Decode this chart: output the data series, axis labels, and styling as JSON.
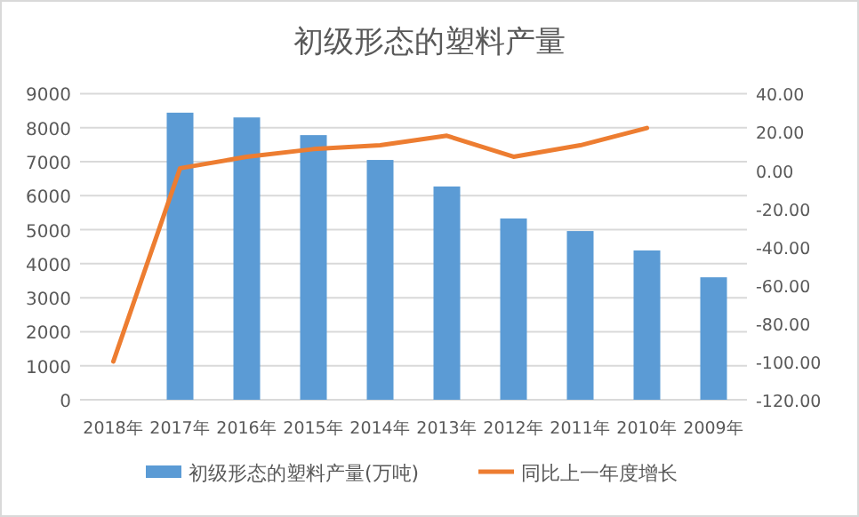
{
  "chart_data": {
    "type": "bar",
    "title": "初级形态的塑料产量",
    "categories": [
      "2018年",
      "2017年",
      "2016年",
      "2015年",
      "2014年",
      "2013年",
      "2012年",
      "2011年",
      "2010年",
      "2009年"
    ],
    "series": [
      {
        "name": "初级形态的塑料产量(万吨)",
        "color": "#5b9bd5",
        "values": [
          null,
          8440,
          8300,
          7780,
          7050,
          6270,
          5330,
          4960,
          4390,
          3600
        ]
      },
      {
        "name": "同比上一年度增长",
        "type": "line",
        "axis": "y2",
        "color": "#ed7d31",
        "values": [
          -100,
          1,
          7,
          11,
          13,
          18,
          7,
          13,
          22,
          null
        ]
      }
    ],
    "ylim": [
      0,
      9000
    ],
    "yticks": [
      0,
      1000,
      2000,
      3000,
      4000,
      5000,
      6000,
      7000,
      8000,
      9000
    ],
    "y2lim": [
      -120,
      40
    ],
    "y2ticks": [
      {
        "value": -120,
        "label": "-120.00"
      },
      {
        "value": -100,
        "label": "-100.00"
      },
      {
        "value": -80,
        "label": "-80.00"
      },
      {
        "value": -60,
        "label": "-60.00"
      },
      {
        "value": -40,
        "label": "-40.00"
      },
      {
        "value": -20,
        "label": "-20.00"
      },
      {
        "value": 0,
        "label": "0.00"
      },
      {
        "value": 20,
        "label": "20.00"
      },
      {
        "value": 40,
        "label": "40.00"
      }
    ],
    "grid": "y",
    "legend": "bottom"
  }
}
